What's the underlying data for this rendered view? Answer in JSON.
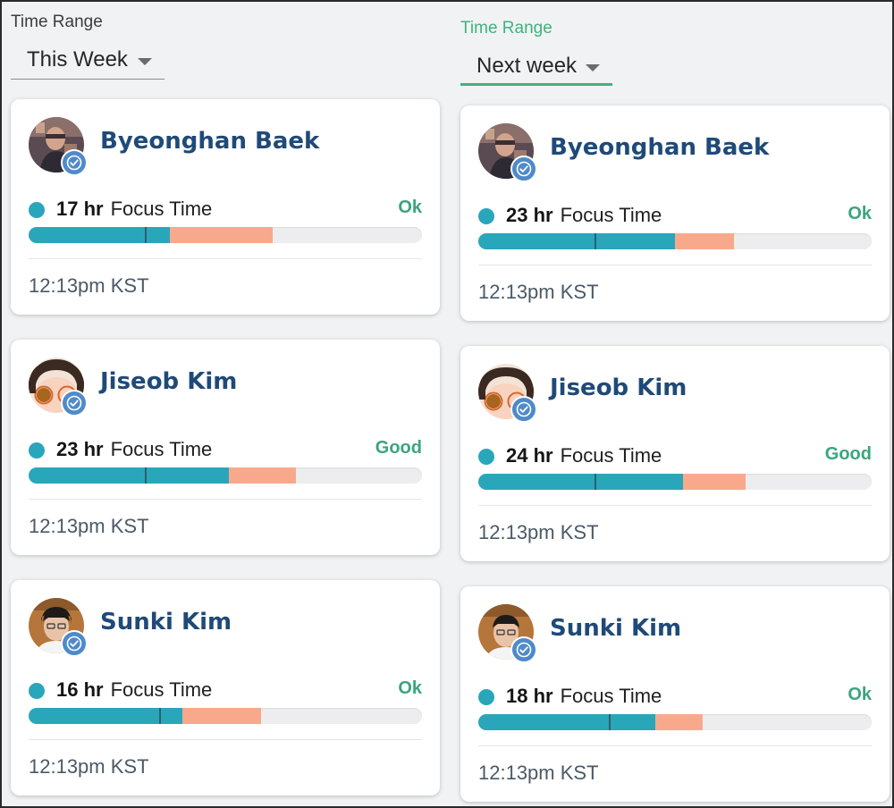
{
  "left_panel": {
    "time_range_label": "Time Range",
    "time_range_value": "This Week",
    "cards": [
      {
        "name": "Byeonghan Baek",
        "hours": "17 hr",
        "focus_label": "Focus Time",
        "status": "Ok",
        "focus_fraction": 0.36,
        "meeting_fraction": 0.26,
        "local_time": "12:13pm KST",
        "avatar_icon": "photo-avatar-icon"
      },
      {
        "name": "Jiseob Kim",
        "hours": "23 hr",
        "focus_label": "Focus Time",
        "status": "Good",
        "focus_fraction": 0.51,
        "meeting_fraction": 0.17,
        "local_time": "12:13pm KST",
        "avatar_icon": "illustrated-avatar-icon"
      },
      {
        "name": "Sunki Kim",
        "hours": "16 hr",
        "focus_label": "Focus Time",
        "status": "Ok",
        "focus_fraction": 0.39,
        "meeting_fraction": 0.2,
        "local_time": "12:13pm KST",
        "avatar_icon": "photo-avatar-icon"
      }
    ]
  },
  "right_panel": {
    "time_range_label": "Time Range",
    "time_range_value": "Next week",
    "cards": [
      {
        "name": "Byeonghan Baek",
        "hours": "23 hr",
        "focus_label": "Focus Time",
        "status": "Ok",
        "focus_fraction": 0.5,
        "meeting_fraction": 0.15,
        "local_time": "12:13pm KST",
        "avatar_icon": "photo-avatar-icon"
      },
      {
        "name": "Jiseob Kim",
        "hours": "24 hr",
        "focus_label": "Focus Time",
        "status": "Good",
        "focus_fraction": 0.52,
        "meeting_fraction": 0.16,
        "local_time": "12:13pm KST",
        "avatar_icon": "illustrated-avatar-icon"
      },
      {
        "name": "Sunki Kim",
        "hours": "18 hr",
        "focus_label": "Focus Time",
        "status": "Ok",
        "focus_fraction": 0.45,
        "meeting_fraction": 0.12,
        "local_time": "12:13pm KST",
        "avatar_icon": "photo-avatar-icon"
      }
    ]
  },
  "colors": {
    "focus": "#2aa6bb",
    "meeting": "#f9a98b",
    "status_good": "#3ba57c",
    "active_accent": "#3fb27f",
    "name": "#1f4a78",
    "badge": "#4f8ac9"
  },
  "icons": {
    "dropdown": "caret-down-icon",
    "verified": "check-circle-icon"
  }
}
